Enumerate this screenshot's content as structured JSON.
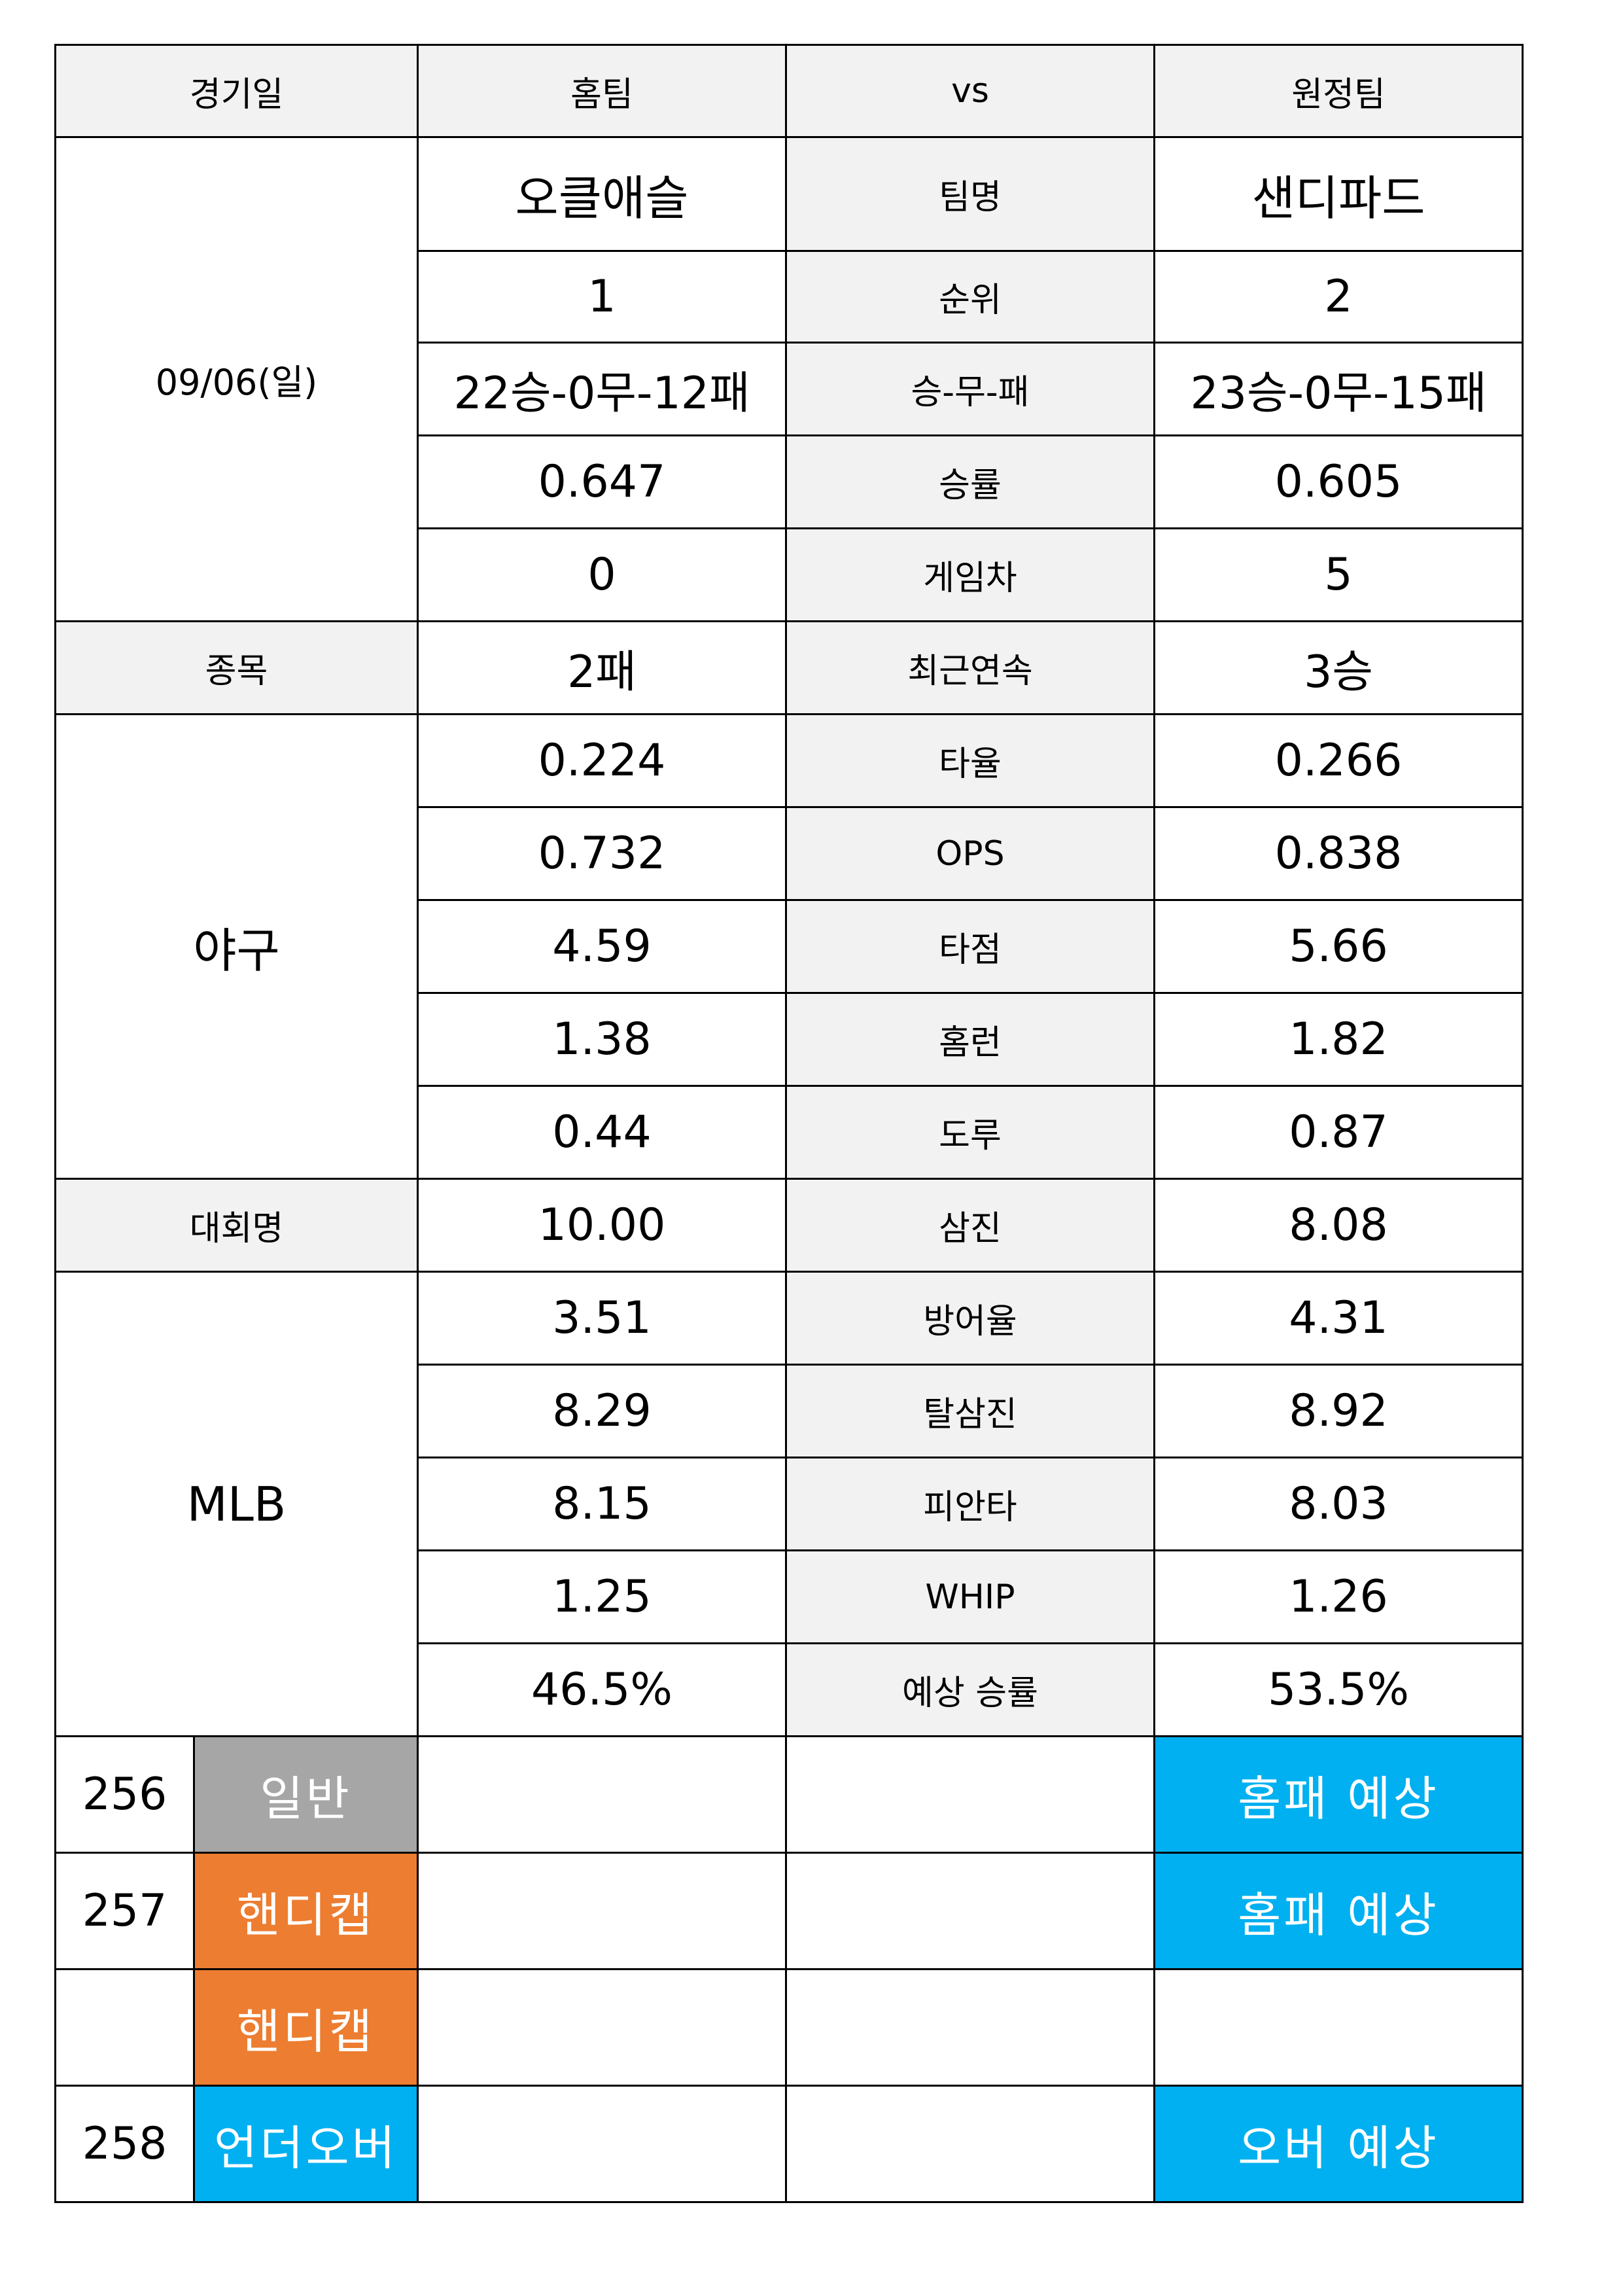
{
  "header": {
    "date_label": "경기일",
    "home_label": "홈팀",
    "vs_label": "vs",
    "away_label": "원정팀"
  },
  "match": {
    "date": "09/06(일)",
    "home_team": "오클애슬",
    "away_team": "샌디파드",
    "sport_label": "종목",
    "sport": "야구",
    "league_label": "대회명",
    "league": "MLB"
  },
  "stats": [
    {
      "label": "팀명",
      "home": "오클애슬",
      "away": "샌디파드"
    },
    {
      "label": "순위",
      "home": "1",
      "away": "2"
    },
    {
      "label": "승-무-패",
      "home": "22승-0무-12패",
      "away": "23승-0무-15패"
    },
    {
      "label": "승률",
      "home": "0.647",
      "away": "0.605"
    },
    {
      "label": "게임차",
      "home": "0",
      "away": "5"
    },
    {
      "label": "최근연속",
      "home": "2패",
      "away": "3승"
    },
    {
      "label": "타율",
      "home": "0.224",
      "away": "0.266"
    },
    {
      "label": "OPS",
      "home": "0.732",
      "away": "0.838"
    },
    {
      "label": "타점",
      "home": "4.59",
      "away": "5.66"
    },
    {
      "label": "홈런",
      "home": "1.38",
      "away": "1.82"
    },
    {
      "label": "도루",
      "home": "0.44",
      "away": "0.87"
    },
    {
      "label": "삼진",
      "home": "10.00",
      "away": "8.08"
    },
    {
      "label": "방어율",
      "home": "3.51",
      "away": "4.31"
    },
    {
      "label": "탈삼진",
      "home": "8.29",
      "away": "8.92"
    },
    {
      "label": "피안타",
      "home": "8.15",
      "away": "8.03"
    },
    {
      "label": "WHIP",
      "home": "1.25",
      "away": "1.26"
    },
    {
      "label": "예상 승률",
      "home": "46.5%",
      "away": "53.5%"
    }
  ],
  "bets": [
    {
      "number": "256",
      "type": "일반",
      "prediction": "홈패 예상"
    },
    {
      "number": "257",
      "type": "핸디캡",
      "prediction": "홈패 예상"
    },
    {
      "number": "",
      "type": "핸디캡",
      "prediction": ""
    },
    {
      "number": "258",
      "type": "언더오버",
      "prediction": "오버 예상"
    }
  ],
  "colors": {
    "gray_header": "#f2f2f2",
    "general": "#a6a6a6",
    "handicap": "#ed7d31",
    "underover": "#00b0f0"
  }
}
